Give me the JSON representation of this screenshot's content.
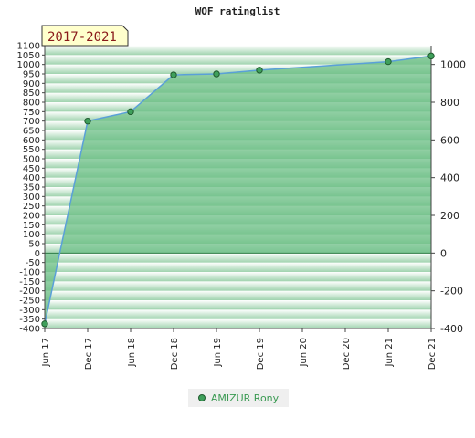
{
  "title": "WOF ratinglist",
  "period_label": "2017-2021",
  "legend": {
    "label": "AMIZUR Rony",
    "marker_color": "#3fa05b"
  },
  "colors": {
    "line": "#5aa0d8",
    "fill": "#6cbf86",
    "marker": "#3fa05b",
    "marker_edge": "#1f5a2e"
  },
  "chart_data": {
    "type": "area",
    "title": "WOF ratinglist",
    "x_ticks": [
      "Jun 17",
      "Dec 17",
      "Jun 18",
      "Dec 18",
      "Jun 19",
      "Dec 19",
      "Jun 20",
      "Dec 20",
      "Jun 21",
      "Dec 21"
    ],
    "series": [
      {
        "name": "AMIZUR Rony",
        "x": [
          "Jun 17",
          "Dec 17",
          "Jun 18",
          "Dec 18",
          "Jun 19",
          "Dec 19",
          "Jun 21",
          "Dec 21"
        ],
        "values": [
          -375,
          700,
          750,
          945,
          950,
          970,
          1015,
          1045
        ]
      }
    ],
    "left_axis": {
      "ylim": [
        -400,
        1100
      ],
      "ticks": [
        1100,
        1050,
        1000,
        950,
        900,
        850,
        800,
        750,
        700,
        650,
        600,
        550,
        500,
        450,
        400,
        350,
        300,
        250,
        200,
        150,
        100,
        50,
        0,
        -50,
        -100,
        -150,
        -200,
        -250,
        -300,
        -350,
        -400
      ]
    },
    "right_axis": {
      "ylim": [
        -400,
        1100
      ],
      "ticks": [
        1000,
        800,
        600,
        400,
        200,
        0,
        -200,
        -400
      ]
    },
    "grid": true,
    "legend_position": "bottom"
  }
}
